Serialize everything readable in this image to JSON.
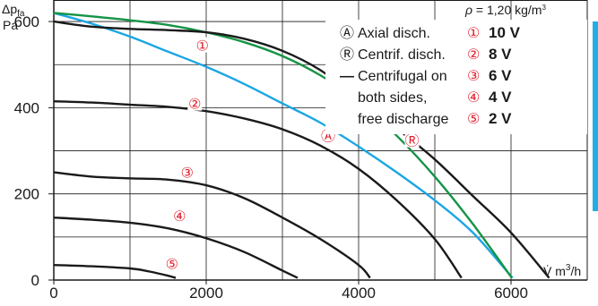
{
  "chart_data": {
    "type": "line",
    "ylabel_main": "Δp",
    "ylabel_sub": "fa",
    "yunit": "Pa",
    "xlabel_main": "V̇ m",
    "xlabel_sup": "3",
    "xlabel_tail": "/h",
    "density_sym": "ρ",
    "density_val": " = 1,20 kg/m",
    "density_sup": "3",
    "xlim": [
      0,
      7000
    ],
    "ylim": [
      0,
      650
    ],
    "xticks": [
      "0",
      "2000",
      "4000",
      "6000"
    ],
    "yticks": [
      "0",
      "200",
      "400",
      "600"
    ],
    "xtick_values": [
      0,
      2000,
      4000,
      6000
    ],
    "ytick_values": [
      0,
      200,
      400,
      600
    ],
    "series": [
      {
        "name": "Axial disch.",
        "marker": "Ⓐ",
        "color": "#1ba6e3",
        "x": [
          0,
          500,
          1000,
          1500,
          2000,
          2500,
          3000,
          3500,
          4000,
          4500,
          5000,
          5500,
          6020
        ],
        "y": [
          620,
          595,
          565,
          530,
          495,
          455,
          410,
          365,
          310,
          250,
          185,
          110,
          5
        ]
      },
      {
        "name": "Centrif. disch.",
        "marker": "Ⓡ",
        "color": "#159446",
        "x": [
          0,
          500,
          1000,
          1500,
          2000,
          2500,
          3000,
          3500,
          4000,
          4500,
          5000,
          5500,
          6010
        ],
        "y": [
          620,
          612,
          603,
          592,
          575,
          552,
          520,
          475,
          415,
          335,
          240,
          130,
          5
        ]
      },
      {
        "name": "1",
        "marker": "①",
        "color": "#1a1a1a",
        "x": [
          0,
          500,
          1000,
          1500,
          2000,
          2500,
          3000,
          3500,
          4000,
          4500,
          5000,
          5500,
          6000,
          6500
        ],
        "y": [
          600,
          588,
          583,
          580,
          575,
          560,
          532,
          487,
          420,
          352,
          280,
          195,
          110,
          5
        ]
      },
      {
        "name": "2",
        "marker": "②",
        "color": "#1a1a1a",
        "x": [
          0,
          500,
          1000,
          1500,
          2000,
          2500,
          3000,
          3500,
          4000,
          4500,
          5000,
          5350
        ],
        "y": [
          415,
          412,
          407,
          402,
          392,
          375,
          350,
          312,
          258,
          185,
          95,
          5
        ]
      },
      {
        "name": "3",
        "marker": "③",
        "color": "#1a1a1a",
        "x": [
          0,
          500,
          1000,
          1500,
          2000,
          2500,
          3000,
          3500,
          4000,
          4150
        ],
        "y": [
          250,
          240,
          236,
          233,
          220,
          190,
          145,
          95,
          35,
          5
        ]
      },
      {
        "name": "4",
        "marker": "④",
        "color": "#1a1a1a",
        "x": [
          0,
          500,
          1000,
          1500,
          2000,
          2500,
          3000,
          3200
        ],
        "y": [
          145,
          140,
          133,
          120,
          97,
          65,
          22,
          5
        ]
      },
      {
        "name": "5",
        "marker": "⑤",
        "color": "#1a1a1a",
        "x": [
          0,
          500,
          1000,
          1250,
          1500,
          1600
        ],
        "y": [
          35,
          32,
          27,
          20,
          10,
          5
        ]
      }
    ],
    "annotations": [
      {
        "text": "Ⓐ",
        "x": 3600,
        "y": 335,
        "color": "#1ba6e3"
      },
      {
        "text": "Ⓡ",
        "x": 4700,
        "y": 325,
        "color": "#159446"
      },
      {
        "text": "①",
        "x": 1950,
        "y": 545,
        "color": "#e01d2a"
      },
      {
        "text": "②",
        "x": 1850,
        "y": 410,
        "color": "#e01d2a"
      },
      {
        "text": "③",
        "x": 1750,
        "y": 250,
        "color": "#e01d2a"
      },
      {
        "text": "④",
        "x": 1650,
        "y": 150,
        "color": "#e01d2a"
      },
      {
        "text": "⑤",
        "x": 1550,
        "y": 38,
        "color": "#e01d2a"
      }
    ],
    "legend": {
      "placement": "top-right",
      "curve_items": [
        {
          "glyph": "Ⓐ",
          "label": "Axial disch.",
          "color": "#1ba6e3"
        },
        {
          "glyph": "Ⓡ",
          "label": "Centrif. disch.",
          "color": "#159446"
        },
        {
          "glyph": "—",
          "label": "Centrifugal on",
          "color": "#1a1a1a"
        },
        {
          "glyph": "",
          "label": "both sides,",
          "color": "#1a1a1a"
        },
        {
          "glyph": "",
          "label": "free discharge",
          "color": "#1a1a1a"
        }
      ],
      "voltage_items": [
        {
          "marker": "①",
          "label": "10 V"
        },
        {
          "marker": "②",
          "label": "8 V"
        },
        {
          "marker": "③",
          "label": "6 V"
        },
        {
          "marker": "④",
          "label": "4 V"
        },
        {
          "marker": "⑤",
          "label": "2 V"
        }
      ]
    },
    "grid": true,
    "colors": {
      "axial": "#1ba6e3",
      "centrif": "#159446",
      "marker": "#e01d2a",
      "curve": "#1a1a1a",
      "grid": "#1a1a1a",
      "side_accent": "#22aee5"
    }
  }
}
